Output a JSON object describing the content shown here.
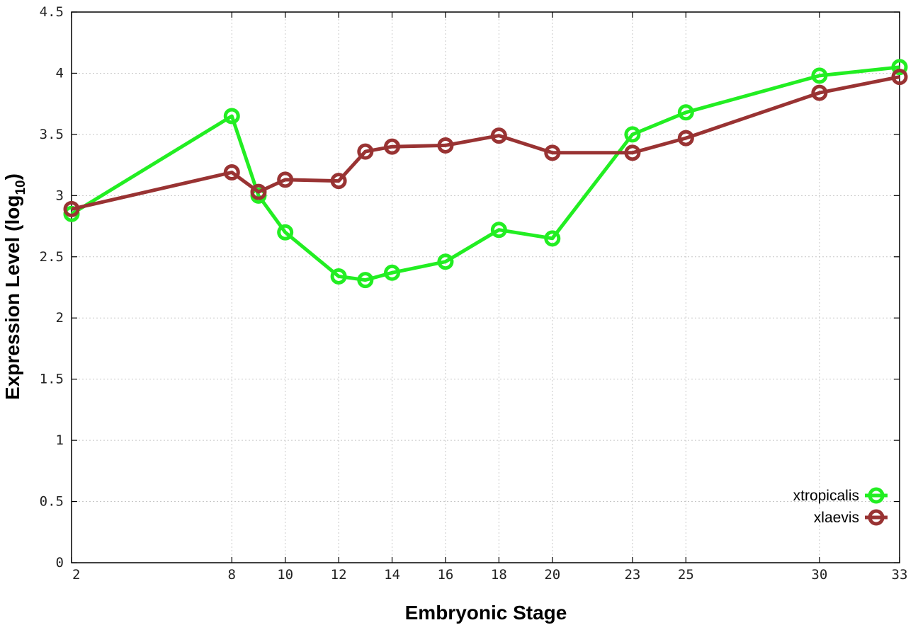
{
  "chart_data": {
    "type": "line",
    "title": "",
    "xlabel": "Embryonic Stage",
    "ylabel": {
      "main": "Expression Level (log",
      "sub": "10",
      "end": ")"
    },
    "xlim": [
      2,
      33
    ],
    "ylim": [
      0,
      4.5
    ],
    "x_ticks": [
      2,
      8,
      10,
      12,
      14,
      16,
      18,
      20,
      23,
      25,
      30,
      33
    ],
    "y_ticks": [
      0,
      0.5,
      1,
      1.5,
      2,
      2.5,
      3,
      3.5,
      4,
      4.5
    ],
    "y_tick_labels": [
      "0",
      "0.5",
      "1",
      "1.5",
      "2",
      "2.5",
      "3",
      "3.5",
      "4",
      "4.5"
    ],
    "grid": true,
    "legend_position": "bottom-right",
    "series": [
      {
        "name": "xtropicalis",
        "color": "#22ee22",
        "x": [
          2,
          8,
          9,
          10,
          12,
          13,
          14,
          16,
          18,
          20,
          23,
          25,
          30,
          33
        ],
        "values": [
          2.85,
          3.65,
          3.0,
          2.7,
          2.34,
          2.31,
          2.37,
          2.46,
          2.72,
          2.65,
          3.5,
          3.68,
          3.98,
          4.05
        ]
      },
      {
        "name": "xlaevis",
        "color": "#993333",
        "x": [
          2,
          8,
          9,
          10,
          12,
          13,
          14,
          16,
          18,
          20,
          23,
          25,
          30,
          33
        ],
        "values": [
          2.89,
          3.19,
          3.03,
          3.13,
          3.12,
          3.36,
          3.4,
          3.41,
          3.49,
          3.35,
          3.35,
          3.47,
          3.84,
          3.97
        ]
      }
    ]
  }
}
